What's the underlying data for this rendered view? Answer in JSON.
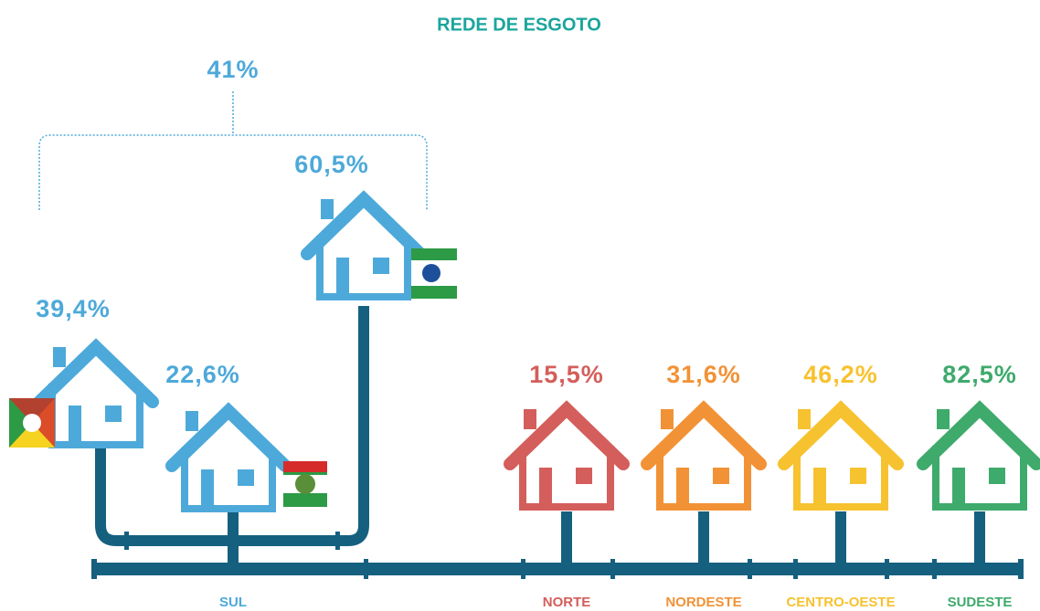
{
  "title": "REDE DE ESGOTO",
  "sul": {
    "label": "SUL",
    "total": "41%",
    "color": "#4da9d9",
    "states": [
      {
        "value": "39,4%"
      },
      {
        "value": "22,6%"
      },
      {
        "value": "60,5%"
      }
    ]
  },
  "regions": [
    {
      "label": "NORTE",
      "value": "15,5%",
      "color": "#d45e5b"
    },
    {
      "label": "NORDESTE",
      "value": "31,6%",
      "color": "#f29236"
    },
    {
      "label": "CENTRO-OESTE",
      "value": "46,2%",
      "color": "#f7c230"
    },
    {
      "label": "SUDESTE",
      "value": "82,5%",
      "color": "#3eaa6c"
    }
  ]
}
